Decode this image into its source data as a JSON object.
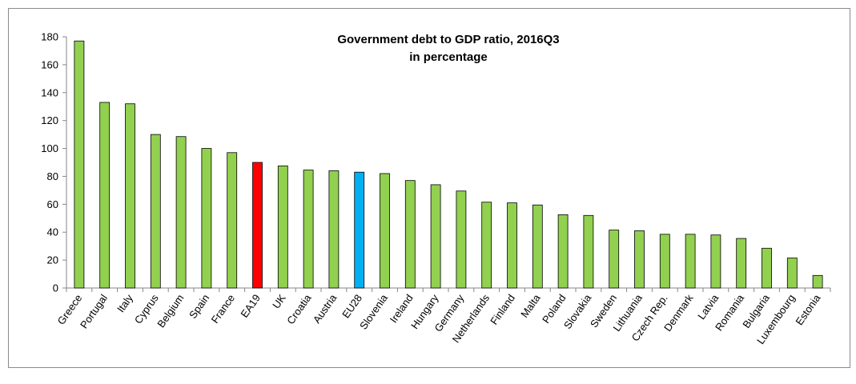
{
  "chart_data": {
    "type": "bar",
    "title": "Government debt to GDP ratio, 2016Q3",
    "subtitle": "in percentage",
    "xlabel": "",
    "ylabel": "",
    "ylim": [
      0,
      180
    ],
    "yticks": [
      0,
      20,
      40,
      60,
      80,
      100,
      120,
      140,
      160,
      180
    ],
    "grid": false,
    "categories": [
      "Greece",
      "Portugal",
      "Italy",
      "Cyprus",
      "Belgium",
      "Spain",
      "France",
      "EA19",
      "UK",
      "Croatia",
      "Austria",
      "EU28",
      "Slovenia",
      "Ireland",
      "Hungary",
      "Germany",
      "Netherlands",
      "Finland",
      "Malta",
      "Poland",
      "Slovakia",
      "Sweden",
      "Lithuania",
      "Czech Rep.",
      "Denmark",
      "Latvia",
      "Romania",
      "Bulgaria",
      "Luxembourg",
      "Estonia"
    ],
    "values": [
      177.0,
      133.0,
      132.0,
      110.0,
      108.5,
      100.0,
      97.0,
      90.0,
      87.5,
      84.5,
      84.0,
      83.0,
      82.0,
      77.0,
      74.0,
      69.5,
      61.5,
      61.0,
      59.5,
      52.5,
      52.0,
      41.5,
      41.0,
      38.5,
      38.5,
      38.0,
      35.5,
      28.5,
      21.5,
      9.0
    ],
    "colors": {
      "default": "#92d050",
      "EA19": "#ff0000",
      "EU28": "#00b0f0",
      "outline": "#000000"
    }
  }
}
